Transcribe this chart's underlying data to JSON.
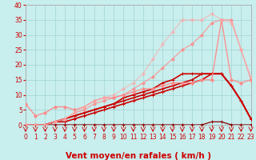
{
  "xlabel": "Vent moyen/en rafales ( km/h )",
  "xlim": [
    0,
    23
  ],
  "ylim": [
    0,
    40
  ],
  "xticks": [
    0,
    1,
    2,
    3,
    4,
    5,
    6,
    7,
    8,
    9,
    10,
    11,
    12,
    13,
    14,
    15,
    16,
    17,
    18,
    19,
    20,
    21,
    22,
    23
  ],
  "yticks": [
    0,
    5,
    10,
    15,
    20,
    25,
    30,
    35,
    40
  ],
  "background_color": "#c8eeed",
  "grid_color": "#a0d4d4",
  "lines": [
    {
      "label": "flat_dark",
      "x": [
        0,
        1,
        2,
        3,
        4,
        5,
        6,
        7,
        8,
        9,
        10,
        11,
        12,
        13,
        14,
        15,
        16,
        17,
        18,
        19,
        20,
        21,
        22,
        23
      ],
      "y": [
        0,
        0,
        0,
        0,
        0,
        0,
        0,
        0,
        0,
        0,
        0,
        0,
        0,
        0,
        0,
        0,
        0,
        0,
        0,
        1,
        1,
        0,
        0,
        0
      ],
      "color": "#880000",
      "alpha": 1.0,
      "linewidth": 0.9,
      "marker": "+",
      "markersize": 2.5
    },
    {
      "label": "dark_red_1",
      "x": [
        0,
        1,
        2,
        3,
        4,
        5,
        6,
        7,
        8,
        9,
        10,
        11,
        12,
        13,
        14,
        15,
        16,
        17,
        18,
        19,
        20,
        21,
        22,
        23
      ],
      "y": [
        0,
        0,
        0,
        1,
        1,
        2,
        3,
        4,
        5,
        6,
        7,
        8,
        9,
        10,
        11,
        12,
        13,
        14,
        15,
        17,
        17,
        13,
        8,
        2
      ],
      "color": "#cc0000",
      "alpha": 1.0,
      "linewidth": 1.2,
      "marker": "+",
      "markersize": 2.5
    },
    {
      "label": "dark_red_2",
      "x": [
        0,
        1,
        2,
        3,
        4,
        5,
        6,
        7,
        8,
        9,
        10,
        11,
        12,
        13,
        14,
        15,
        16,
        17,
        18,
        19,
        20,
        21,
        22,
        23
      ],
      "y": [
        0,
        0,
        0,
        1,
        2,
        3,
        4,
        5,
        6,
        7,
        8,
        9,
        10,
        11,
        12,
        13,
        14,
        15,
        17,
        17,
        17,
        13,
        8,
        2
      ],
      "color": "#cc0000",
      "alpha": 1.0,
      "linewidth": 1.2,
      "marker": "+",
      "markersize": 2.5
    },
    {
      "label": "dark_red_3",
      "x": [
        0,
        1,
        2,
        3,
        4,
        5,
        6,
        7,
        8,
        9,
        10,
        11,
        12,
        13,
        14,
        15,
        16,
        17,
        18,
        19,
        20,
        21,
        22,
        23
      ],
      "y": [
        0,
        0,
        0,
        1,
        2,
        3,
        4,
        5,
        6,
        7,
        9,
        10,
        11,
        12,
        14,
        15,
        17,
        17,
        17,
        17,
        17,
        13,
        8,
        2
      ],
      "color": "#cc0000",
      "alpha": 1.0,
      "linewidth": 1.2,
      "marker": "+",
      "markersize": 2.5
    },
    {
      "label": "pink_wavy",
      "x": [
        0,
        1,
        2,
        3,
        4,
        5,
        6,
        7,
        8,
        9,
        10,
        11,
        12,
        13,
        14,
        15,
        16,
        17,
        18,
        19,
        20,
        21,
        22,
        23
      ],
      "y": [
        7,
        3,
        4,
        6,
        6,
        5,
        6,
        8,
        9,
        9,
        10,
        11,
        12,
        12,
        13,
        14,
        14,
        14,
        15,
        15,
        35,
        15,
        14,
        15
      ],
      "color": "#ff8888",
      "alpha": 0.9,
      "linewidth": 1.0,
      "marker": "D",
      "markersize": 2.0
    },
    {
      "label": "pink_linear",
      "x": [
        0,
        1,
        2,
        3,
        4,
        5,
        6,
        7,
        8,
        9,
        10,
        11,
        12,
        13,
        14,
        15,
        16,
        17,
        18,
        19,
        20,
        21,
        22,
        23
      ],
      "y": [
        0,
        0,
        0,
        1,
        2,
        4,
        5,
        7,
        8,
        9,
        10,
        12,
        14,
        16,
        19,
        22,
        25,
        27,
        30,
        34,
        35,
        35,
        25,
        15
      ],
      "color": "#ff8888",
      "alpha": 0.7,
      "linewidth": 1.0,
      "marker": "D",
      "markersize": 2.0
    },
    {
      "label": "pink_steep",
      "x": [
        0,
        1,
        2,
        3,
        4,
        5,
        6,
        7,
        8,
        9,
        10,
        11,
        12,
        13,
        14,
        15,
        16,
        17,
        18,
        19,
        20,
        21,
        22,
        23
      ],
      "y": [
        0,
        0,
        0,
        1,
        2,
        4,
        6,
        8,
        9,
        10,
        12,
        14,
        17,
        22,
        27,
        31,
        35,
        35,
        35,
        37,
        35,
        34,
        25,
        16
      ],
      "color": "#ffaaaa",
      "alpha": 0.6,
      "linewidth": 1.0,
      "marker": "D",
      "markersize": 2.0
    }
  ],
  "arrow_color": "#cc0000",
  "xlabel_fontsize": 7.5,
  "tick_fontsize": 5.5,
  "xlabel_color": "#cc0000",
  "tick_color": "#cc0000",
  "spine_color": "#aaaaaa"
}
